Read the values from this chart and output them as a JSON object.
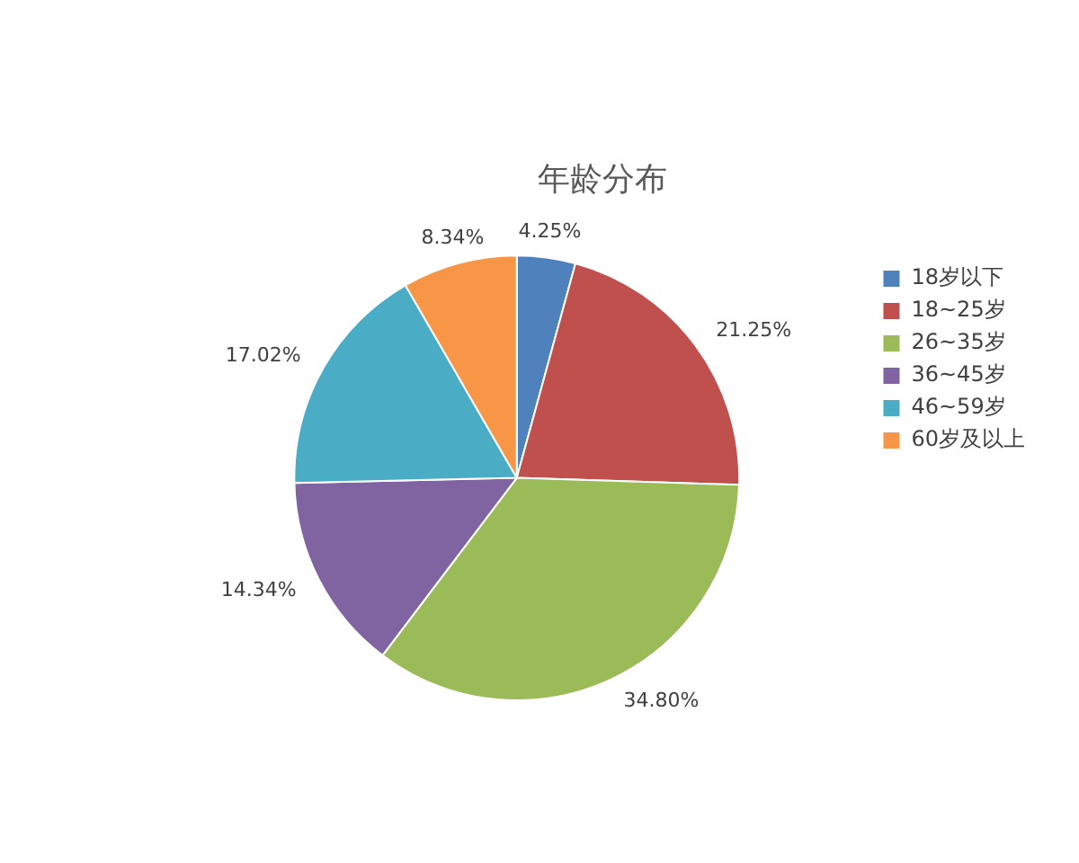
{
  "chart_data": {
    "type": "pie",
    "title": "年龄分布",
    "categories": [
      "18岁以下",
      "18~25岁",
      "26~35岁",
      "36~45岁",
      "46~59岁",
      "60岁及以上"
    ],
    "values": [
      4.25,
      21.25,
      34.8,
      14.34,
      17.02,
      8.34
    ],
    "value_labels": [
      "4.25%",
      "21.25%",
      "34.80%",
      "14.34%",
      "17.02%",
      "8.34%"
    ],
    "colors": [
      "#4f81bd",
      "#c0504d",
      "#9bbb59",
      "#8064a2",
      "#4bacc6",
      "#f79646"
    ],
    "legend": "right"
  }
}
